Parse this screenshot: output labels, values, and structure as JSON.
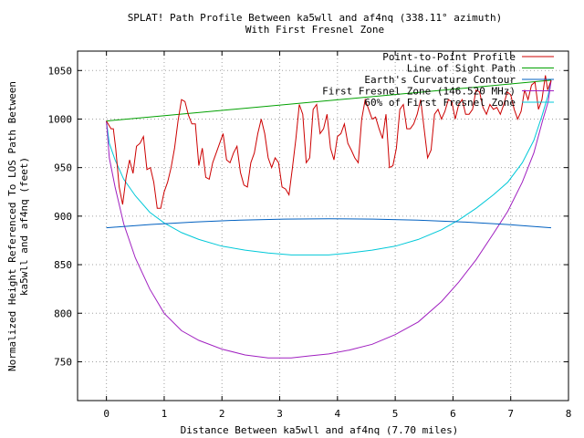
{
  "chart_data": {
    "type": "line",
    "title": "SPLAT! Path Profile Between ka5wll and af4nq (338.11° azimuth)",
    "subtitle": "With First Fresnel Zone",
    "xlabel": "Distance Between ka5wll and af4nq (7.70 miles)",
    "ylabel_line1": "Normalized Height Referenced To LOS Path Between",
    "ylabel_line2": "ka5wll and af4nq (feet)",
    "xlim": [
      -0.5,
      8
    ],
    "ylim": [
      710,
      1070
    ],
    "xticks": [
      "0",
      "1",
      "2",
      "3",
      "4",
      "5",
      "6",
      "7",
      "8"
    ],
    "yticks": [
      "750",
      "800",
      "850",
      "900",
      "950",
      "1000",
      "1050"
    ],
    "grid": true,
    "legend_position": "top-right",
    "series": [
      {
        "name": "Point-to-Point Profile",
        "color": "#cc0000",
        "x": [
          0,
          0.08,
          0.12,
          0.16,
          0.22,
          0.28,
          0.34,
          0.4,
          0.46,
          0.52,
          0.58,
          0.64,
          0.7,
          0.76,
          0.82,
          0.88,
          0.94,
          1.0,
          1.06,
          1.12,
          1.18,
          1.24,
          1.3,
          1.36,
          1.42,
          1.48,
          1.54,
          1.6,
          1.66,
          1.72,
          1.78,
          1.84,
          1.9,
          1.96,
          2.02,
          2.08,
          2.14,
          2.2,
          2.26,
          2.32,
          2.38,
          2.44,
          2.5,
          2.56,
          2.62,
          2.68,
          2.74,
          2.8,
          2.86,
          2.92,
          2.98,
          3.04,
          3.1,
          3.16,
          3.22,
          3.28,
          3.34,
          3.4,
          3.46,
          3.52,
          3.58,
          3.64,
          3.7,
          3.76,
          3.82,
          3.88,
          3.94,
          4.0,
          4.06,
          4.12,
          4.18,
          4.24,
          4.3,
          4.36,
          4.42,
          4.48,
          4.54,
          4.6,
          4.66,
          4.72,
          4.78,
          4.84,
          4.9,
          4.96,
          5.02,
          5.08,
          5.14,
          5.2,
          5.26,
          5.32,
          5.38,
          5.44,
          5.5,
          5.56,
          5.62,
          5.68,
          5.74,
          5.8,
          5.86,
          5.92,
          5.98,
          6.04,
          6.1,
          6.16,
          6.22,
          6.28,
          6.34,
          6.4,
          6.46,
          6.52,
          6.58,
          6.64,
          6.7,
          6.76,
          6.82,
          6.88,
          6.94,
          7.0,
          7.06,
          7.12,
          7.18,
          7.24,
          7.3,
          7.36,
          7.42,
          7.48,
          7.54,
          7.6,
          7.64,
          7.7
        ],
        "y": [
          998,
          990,
          990,
          970,
          930,
          912,
          940,
          958,
          944,
          972,
          975,
          982,
          948,
          950,
          935,
          908,
          908,
          925,
          935,
          950,
          970,
          998,
          1020,
          1018,
          1004,
          995,
          995,
          952,
          970,
          940,
          938,
          955,
          965,
          975,
          985,
          958,
          955,
          965,
          972,
          945,
          932,
          930,
          955,
          965,
          985,
          1000,
          985,
          960,
          950,
          960,
          955,
          930,
          928,
          922,
          950,
          980,
          1015,
          1005,
          955,
          960,
          1010,
          1015,
          985,
          990,
          1005,
          970,
          958,
          982,
          985,
          995,
          975,
          968,
          960,
          955,
          1000,
          1020,
          1010,
          1000,
          1002,
          990,
          980,
          1005,
          950,
          952,
          970,
          1010,
          1015,
          990,
          990,
          995,
          1005,
          1020,
          990,
          960,
          968,
          1005,
          1010,
          1000,
          1008,
          1020,
          1018,
          1000,
          1015,
          1020,
          1005,
          1005,
          1010,
          1030,
          1028,
          1012,
          1005,
          1015,
          1010,
          1012,
          1005,
          1015,
          1028,
          1025,
          1010,
          1000,
          1008,
          1030,
          1020,
          1035,
          1038,
          1010,
          1020,
          1045,
          1030,
          1040
        ]
      },
      {
        "name": "Line of Sight Path",
        "color": "#00a000",
        "x": [
          0,
          7.7
        ],
        "y": [
          998,
          1040
        ]
      },
      {
        "name": "Earth's Curvature Contour",
        "color": "#0060c0",
        "x": [
          0,
          0.77,
          1.54,
          2.31,
          3.08,
          3.85,
          4.62,
          5.39,
          6.16,
          6.93,
          7.7
        ],
        "y": [
          888,
          891.4,
          894,
          895.9,
          897,
          897.3,
          897,
          895.9,
          894,
          891.4,
          888
        ]
      },
      {
        "name": "First Fresnel Zone (146.520 MHz)",
        "color": "#a020c0",
        "x": [
          0,
          0.05,
          0.15,
          0.3,
          0.5,
          0.75,
          1.0,
          1.3,
          1.6,
          2.0,
          2.4,
          2.8,
          3.2,
          3.5,
          3.85,
          4.2,
          4.6,
          5.0,
          5.4,
          5.8,
          6.1,
          6.4,
          6.7,
          6.95,
          7.2,
          7.4,
          7.55,
          7.65,
          7.7
        ],
        "y": [
          998,
          960,
          930,
          892,
          857,
          825,
          800,
          782,
          772,
          763,
          757,
          754,
          754,
          756,
          758,
          762,
          768,
          778,
          791,
          812,
          832,
          855,
          882,
          905,
          935,
          965,
          998,
          1018,
          1040
        ]
      },
      {
        "name": "60% of First Fresnel Zone",
        "color": "#00c8d8",
        "x": [
          0,
          0.05,
          0.15,
          0.3,
          0.5,
          0.75,
          1.0,
          1.3,
          1.6,
          2.0,
          2.4,
          2.8,
          3.2,
          3.5,
          3.85,
          4.2,
          4.6,
          5.0,
          5.4,
          5.8,
          6.1,
          6.4,
          6.7,
          6.95,
          7.2,
          7.4,
          7.55,
          7.65,
          7.7
        ],
        "y": [
          998,
          975,
          958,
          938,
          921,
          904,
          893,
          883,
          876,
          869,
          865,
          862,
          860,
          860,
          860,
          862,
          865,
          869,
          876,
          886,
          896,
          908,
          922,
          935,
          955,
          978,
          1005,
          1025,
          1040
        ]
      }
    ]
  }
}
